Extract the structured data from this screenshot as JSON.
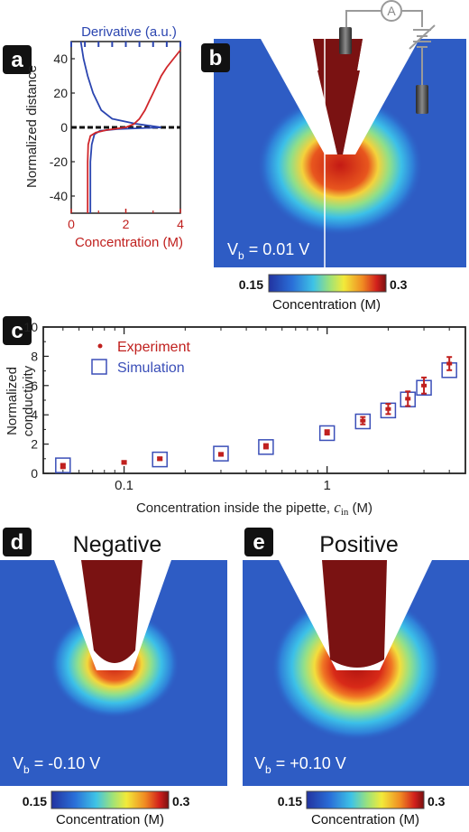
{
  "panels": {
    "a": {
      "badge": "a",
      "top_axis_label": "Derivative (a.u.)",
      "y_label": "Normalized distance",
      "x_label": "Concentration (M)",
      "x_ticks": [
        "0",
        "2",
        "4"
      ],
      "y_ticks": [
        "40",
        "20",
        "0",
        "-20",
        "-40"
      ]
    },
    "b": {
      "badge": "b",
      "voltage_label": "V",
      "voltage_sub": "b",
      "voltage_value": " = 0.01 V",
      "ammeter_symbol": "A",
      "colorbar_min": "0.15",
      "colorbar_max": "0.3",
      "colorbar_label": "Concentration (M)"
    },
    "c": {
      "badge": "c",
      "y_label_line1": "Normalized",
      "y_label_line2": "conductivity",
      "x_label_main": "Concentration inside the pipette, ",
      "x_label_var": "c",
      "x_label_sub": "in",
      "x_label_unit": " (M)",
      "legend_experiment": "Experiment",
      "legend_simulation": "Simulation",
      "x_ticks": [
        "0.1",
        "1"
      ],
      "y_ticks": [
        "0",
        "2",
        "4",
        "6",
        "8",
        "10"
      ]
    },
    "d": {
      "badge": "d",
      "title": "Negative",
      "voltage_label": "V",
      "voltage_sub": "b",
      "voltage_value": " = -0.10 V",
      "colorbar_min": "0.15",
      "colorbar_max": "0.3",
      "colorbar_label": "Concentration (M)"
    },
    "e": {
      "badge": "e",
      "title": "Positive",
      "voltage_label": "V",
      "voltage_sub": "b",
      "voltage_value": " = +0.10 V",
      "colorbar_min": "0.15",
      "colorbar_max": "0.3",
      "colorbar_label": "Concentration (M)"
    }
  },
  "colors": {
    "background_blue": "#2e5cc4",
    "pipette_dark": "#7a1212",
    "experiment_red": "#c0201e",
    "simulation_blue": "#3b4fb8",
    "derivative_blue": "#2b45b0",
    "concentration_red": "#d0262a"
  },
  "chart_data": [
    {
      "type": "line",
      "panel": "a",
      "y_axis": {
        "label": "Normalized distance",
        "range": [
          -50,
          50
        ]
      },
      "x_axis_bottom": {
        "label": "Concentration (M)",
        "range": [
          0,
          4
        ]
      },
      "x_axis_top": {
        "label": "Derivative (a.u.)"
      },
      "series": [
        {
          "axis": "bottom",
          "points": [
            [
              0.6,
              -50
            ],
            [
              0.6,
              -40
            ],
            [
              0.6,
              -30
            ],
            [
              0.6,
              -20
            ],
            [
              0.62,
              -10
            ],
            [
              0.7,
              -5
            ],
            [
              0.9,
              -3
            ],
            [
              1.3,
              -1.5
            ],
            [
              2.0,
              0
            ],
            [
              2.3,
              2
            ],
            [
              2.5,
              5
            ],
            [
              2.7,
              10
            ],
            [
              2.85,
              15
            ],
            [
              3.0,
              20
            ],
            [
              3.15,
              25
            ],
            [
              3.3,
              30
            ],
            [
              3.5,
              35
            ],
            [
              3.75,
              40
            ],
            [
              4.0,
              45
            ]
          ]
        },
        {
          "axis": "top",
          "points": [
            [
              0.35,
              50
            ],
            [
              0.45,
              40
            ],
            [
              0.6,
              30
            ],
            [
              0.8,
              20
            ],
            [
              1.1,
              10
            ],
            [
              1.5,
              5
            ],
            [
              2.4,
              2
            ],
            [
              3.1,
              0.5
            ],
            [
              3.3,
              0
            ],
            [
              1.7,
              -1
            ],
            [
              1.05,
              -2
            ],
            [
              0.85,
              -4
            ],
            [
              0.75,
              -10
            ],
            [
              0.7,
              -20
            ],
            [
              0.7,
              -30
            ],
            [
              0.7,
              -40
            ],
            [
              0.7,
              -50
            ]
          ]
        }
      ]
    },
    {
      "type": "scatter",
      "panel": "c",
      "x_scale": "log",
      "xlim": [
        0.04,
        4.8
      ],
      "ylim": [
        0,
        10
      ],
      "series": [
        {
          "name": "Experiment",
          "points": [
            {
              "x": 0.05,
              "y": 0.5,
              "err": 0.15
            },
            {
              "x": 0.1,
              "y": 0.75,
              "err": 0.1
            },
            {
              "x": 0.15,
              "y": 1.0,
              "err": 0.1
            },
            {
              "x": 0.3,
              "y": 1.3,
              "err": 0.1
            },
            {
              "x": 0.5,
              "y": 1.85,
              "err": 0.15
            },
            {
              "x": 1.0,
              "y": 2.8,
              "err": 0.15
            },
            {
              "x": 1.5,
              "y": 3.6,
              "err": 0.25
            },
            {
              "x": 2.0,
              "y": 4.4,
              "err": 0.35
            },
            {
              "x": 2.5,
              "y": 5.1,
              "err": 0.5
            },
            {
              "x": 3.0,
              "y": 6.0,
              "err": 0.55
            },
            {
              "x": 4.0,
              "y": 7.5,
              "err": 0.45
            }
          ]
        },
        {
          "name": "Simulation",
          "points": [
            {
              "x": 0.05,
              "y": 0.55
            },
            {
              "x": 0.15,
              "y": 0.95
            },
            {
              "x": 0.3,
              "y": 1.35
            },
            {
              "x": 0.5,
              "y": 1.8
            },
            {
              "x": 1.0,
              "y": 2.75
            },
            {
              "x": 1.5,
              "y": 3.55
            },
            {
              "x": 2.0,
              "y": 4.3
            },
            {
              "x": 2.5,
              "y": 5.05
            },
            {
              "x": 3.0,
              "y": 5.85
            },
            {
              "x": 4.0,
              "y": 7.05
            }
          ]
        }
      ]
    }
  ]
}
